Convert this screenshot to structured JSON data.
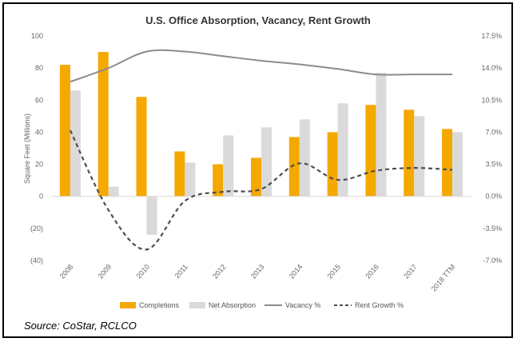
{
  "chart_data": {
    "type": "bar",
    "title": "U.S. Office Absorption, Vacancy, Rent Growth",
    "ylabel": "Square Feet (Millions)",
    "ylim": [
      -40,
      100
    ],
    "y2lim": [
      -7.0,
      17.5
    ],
    "y_ticks": [
      "100",
      "80",
      "60",
      "40",
      "20",
      "0",
      "(20)",
      "(40)"
    ],
    "y_tick_values": [
      100,
      80,
      60,
      40,
      20,
      0,
      -20,
      -40
    ],
    "y2_ticks": [
      "17.5%",
      "14.0%",
      "10.5%",
      "7.0%",
      "3.5%",
      "0.0%",
      "-3.5%",
      "-7.0%"
    ],
    "y2_tick_values": [
      17.5,
      14.0,
      10.5,
      7.0,
      3.5,
      0.0,
      -3.5,
      -7.0
    ],
    "categories": [
      "2008",
      "2009",
      "2010",
      "2011",
      "2012",
      "2013",
      "2014",
      "2015",
      "2016",
      "2017",
      "2018 TTM"
    ],
    "series": [
      {
        "name": "Completions",
        "kind": "bar",
        "color": "#F5A800",
        "values": [
          82,
          90,
          62,
          28,
          20,
          24,
          37,
          40,
          57,
          54,
          42
        ]
      },
      {
        "name": "Net Absorption",
        "kind": "bar",
        "color": "#DADADA",
        "values": [
          66,
          6,
          -24,
          21,
          38,
          43,
          48,
          58,
          77,
          50,
          40
        ]
      },
      {
        "name": "Vacancy %",
        "kind": "line",
        "axis": "right",
        "color": "#8C8C8C",
        "values": [
          12.5,
          14.0,
          15.8,
          15.8,
          15.3,
          14.8,
          14.4,
          13.9,
          13.3,
          13.3,
          13.3
        ]
      },
      {
        "name": "Rent Growth %",
        "kind": "line",
        "axis": "right",
        "color": "#4D4D4D",
        "dashed": true,
        "values": [
          7.2,
          -1.5,
          -5.8,
          -0.5,
          0.5,
          0.8,
          3.6,
          1.8,
          2.8,
          3.1,
          2.9
        ]
      }
    ],
    "legend_position": "bottom",
    "grid": false
  },
  "source": "Source: CoStar, RCLCO"
}
